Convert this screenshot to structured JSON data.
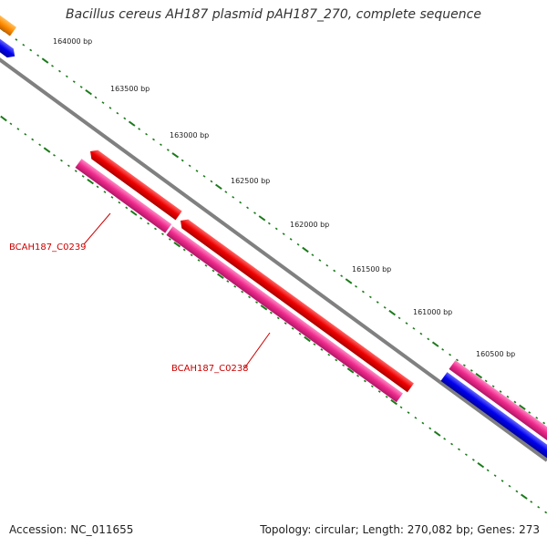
{
  "title": "Bacillus cereus AH187 plasmid pAH187_270, complete sequence",
  "accession_text": "Accession: NC_011655",
  "summary_text": "Topology: circular; Length: 270,082 bp; Genes: 273",
  "ticks": [
    {
      "label": "164000 bp"
    },
    {
      "label": "163500 bp"
    },
    {
      "label": "163000 bp"
    },
    {
      "label": "162500 bp"
    },
    {
      "label": "162000 bp"
    },
    {
      "label": "161500 bp"
    },
    {
      "label": "161000 bp"
    },
    {
      "label": "160500 bp"
    }
  ],
  "genes": [
    {
      "label": "BCAH187_C0239"
    },
    {
      "label": "BCAH187_C0238"
    }
  ],
  "colors": {
    "backbone": "#808080",
    "tick_marks": "#1a7a1a",
    "gene_label": "#cc0000",
    "red_feature": "#ee0000",
    "pink_feature": "#ee2a8c",
    "blue_feature": "#0000ee",
    "orange_feature": "#ff8c00"
  }
}
